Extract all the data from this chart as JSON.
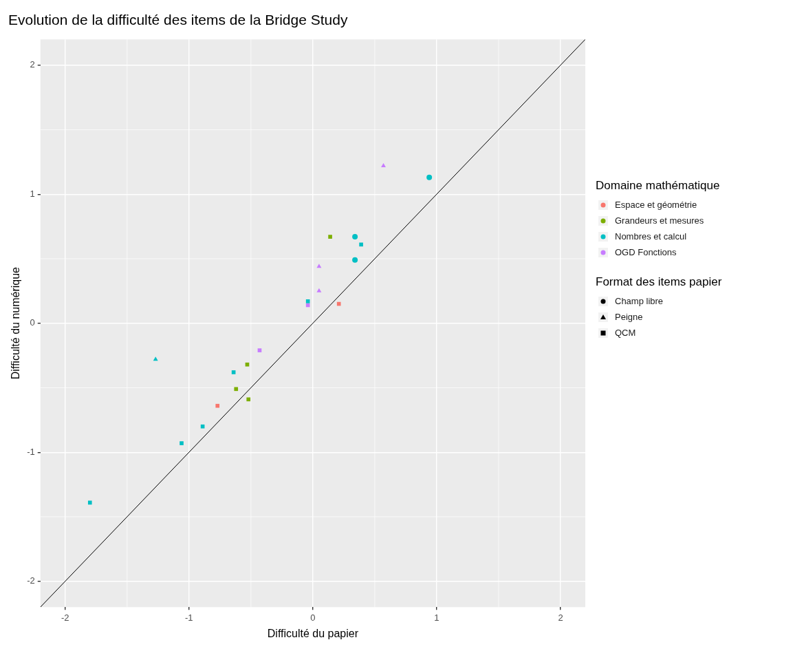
{
  "chart_data": {
    "type": "scatter",
    "title": "Evolution de la difficulté des items de la Bridge Study",
    "xlabel": "Difficulté du papier",
    "ylabel": "Difficulté du numérique",
    "legend_title": [
      "Domaine mathématique",
      "Format des items papier"
    ],
    "legend": "right",
    "grid": true,
    "xlim": [
      -2.2,
      2.2
    ],
    "ylim": [
      -2.2,
      2.2
    ],
    "xticks": [
      -2,
      -1,
      0,
      1,
      2
    ],
    "yticks": [
      -2,
      -1,
      0,
      1,
      2
    ],
    "series": [
      {
        "name": "Espace et géométrie",
        "color": "#f8766d",
        "marker": "square",
        "x": [
          0.21,
          -0.77
        ],
        "values": [
          0.15,
          -0.64
        ]
      },
      {
        "name": "Grandeurs et mesures",
        "color": "#7cae00",
        "marker": "square",
        "x": [
          0.14,
          -0.53,
          -0.62,
          -0.52
        ],
        "values": [
          0.67,
          -0.32,
          -0.51,
          -0.59
        ]
      },
      {
        "name": "Nombres et calcul",
        "color": "#00bfc4",
        "marker": "circle",
        "x": [
          0.94,
          0.34,
          0.34
        ],
        "values": [
          1.13,
          0.67,
          0.49
        ]
      },
      {
        "color": "#00bfc4",
        "marker": "square",
        "x": [
          0.39,
          -0.04,
          -0.64,
          -0.89,
          -1.06,
          -1.8
        ],
        "values": [
          0.61,
          0.17,
          -0.38,
          -0.8,
          -0.93,
          -1.39
        ]
      },
      {
        "color": "#00bfc4",
        "marker": "triangle",
        "x": [
          -1.27
        ],
        "values": [
          -0.28
        ]
      },
      {
        "name": "OGD Fonctions",
        "color": "#c77cff",
        "marker": "triangle",
        "x": [
          0.57,
          0.05,
          0.05
        ],
        "values": [
          1.22,
          0.44,
          0.25
        ]
      },
      {
        "color": "#c77cff",
        "marker": "square",
        "x": [
          -0.04,
          -0.43
        ],
        "values": [
          0.14,
          -0.21
        ]
      },
      {
        "name": "Champ libre",
        "color": "#000000",
        "marker": "circle"
      },
      {
        "name": "Peigne",
        "color": "#000000",
        "marker": "triangle"
      },
      {
        "name": "QCM",
        "color": "#000000",
        "marker": "square"
      },
      {
        "type": "line",
        "color": "#000000",
        "marker": "none",
        "x": [
          -2.2,
          2.2
        ],
        "values": [
          -2.2,
          2.2
        ]
      }
    ]
  }
}
